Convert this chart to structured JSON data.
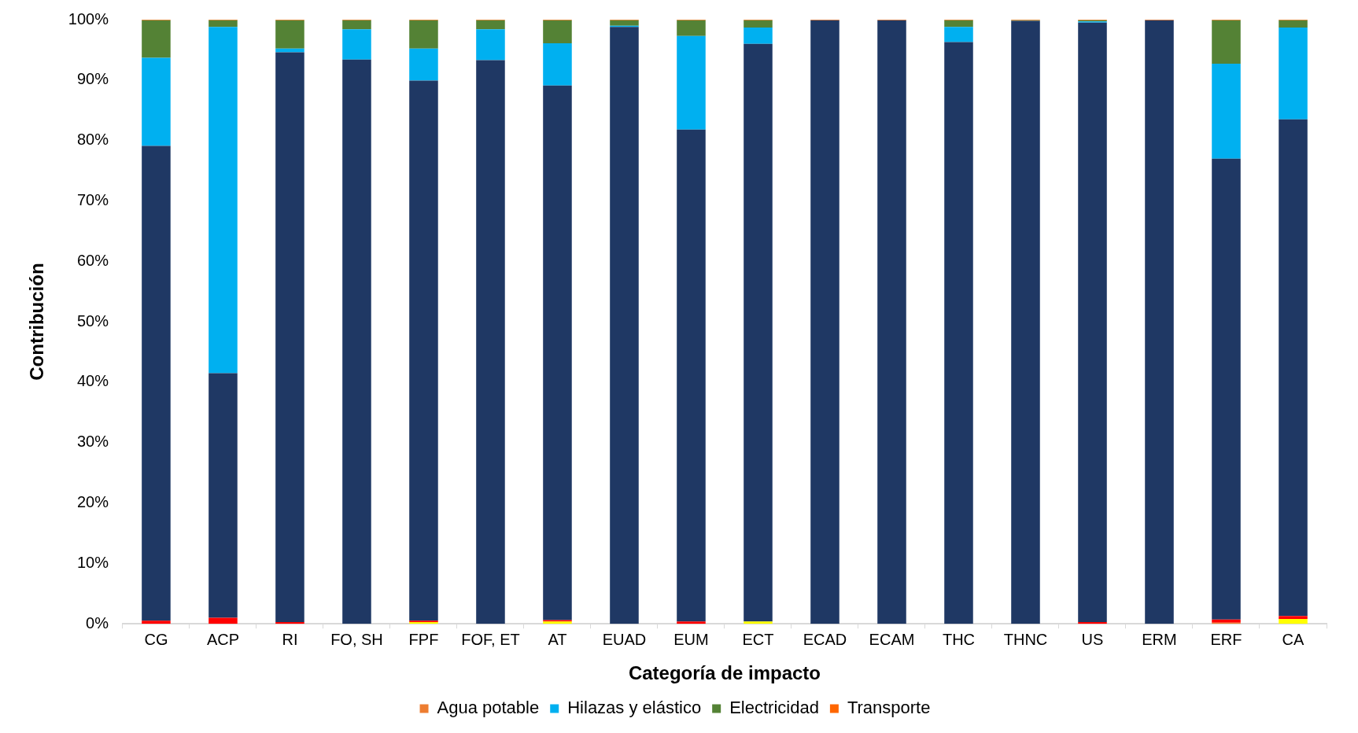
{
  "chart_data": {
    "type": "bar",
    "stacked": true,
    "xlabel": "Categoría de impacto",
    "ylabel": "Contribución",
    "legend": "bottom",
    "grid": false,
    "categories": [
      "CG",
      "ACP",
      "RI",
      "FO, SH",
      "FPF",
      "FOF, ET",
      "AT",
      "EUAD",
      "EUM",
      "ECT",
      "ECAD",
      "ECAM",
      "THC",
      "THNC",
      "US",
      "ERM",
      "ERF",
      "CA"
    ],
    "ylim": [
      0,
      100
    ],
    "yticks": [
      {
        "value": 0,
        "label": "0%"
      },
      {
        "value": 10,
        "label": "10%"
      },
      {
        "value": 20,
        "label": "20%"
      },
      {
        "value": 30,
        "label": "30%"
      },
      {
        "value": 40,
        "label": "40%"
      },
      {
        "value": 50,
        "label": "50%"
      },
      {
        "value": 60,
        "label": "60%"
      },
      {
        "value": 70,
        "label": "70%"
      },
      {
        "value": 80,
        "label": "80%"
      },
      {
        "value": 90,
        "label": "90%"
      },
      {
        "value": 100,
        "label": "100%"
      }
    ],
    "series": [
      {
        "name": "Agua potable",
        "color": "#ed7d31",
        "values": [
          0,
          0,
          0,
          0,
          0,
          0,
          0,
          0,
          0,
          0,
          0,
          0,
          0,
          0,
          0,
          0,
          0.2,
          0
        ]
      },
      {
        "color": "#ffff00",
        "values": [
          0,
          0,
          0,
          0,
          0.3,
          0,
          0.4,
          0,
          0,
          0.4,
          0,
          0,
          0,
          0,
          0,
          0,
          0,
          0.8
        ]
      },
      {
        "color": "#ff0000",
        "values": [
          0.5,
          1.0,
          0.3,
          0,
          0.2,
          0,
          0.2,
          0,
          0.4,
          0,
          0,
          0,
          0,
          0,
          0.3,
          0,
          0.5,
          0.5
        ]
      },
      {
        "color": "#1f3864",
        "values": [
          78.6,
          40.5,
          94.3,
          93.4,
          89.4,
          93.3,
          88.5,
          98.8,
          81.4,
          95.6,
          99.9,
          99.9,
          96.3,
          99.8,
          99.2,
          99.9,
          76.3,
          82.2
        ]
      },
      {
        "name": "Hilazas y elástico",
        "color": "#00b0f0",
        "values": [
          14.6,
          57.3,
          0.6,
          5.0,
          5.3,
          5.1,
          7.0,
          0.2,
          15.5,
          2.7,
          0,
          0,
          2.5,
          0,
          0.2,
          0,
          15.7,
          15.2
        ]
      },
      {
        "name": "Electricidad",
        "color": "#548235",
        "values": [
          6.2,
          1.1,
          4.7,
          1.5,
          4.7,
          1.5,
          3.8,
          0.9,
          2.6,
          1.2,
          0,
          0,
          1.1,
          0.1,
          0.2,
          0,
          7.2,
          1.2
        ]
      },
      {
        "name": "Transporte",
        "color": "#ff6600",
        "values": [
          0.1,
          0.1,
          0.1,
          0.1,
          0.1,
          0.1,
          0.1,
          0.1,
          0.1,
          0.1,
          0.1,
          0.1,
          0.1,
          0.1,
          0.1,
          0.1,
          0.1,
          0.1
        ]
      }
    ]
  }
}
